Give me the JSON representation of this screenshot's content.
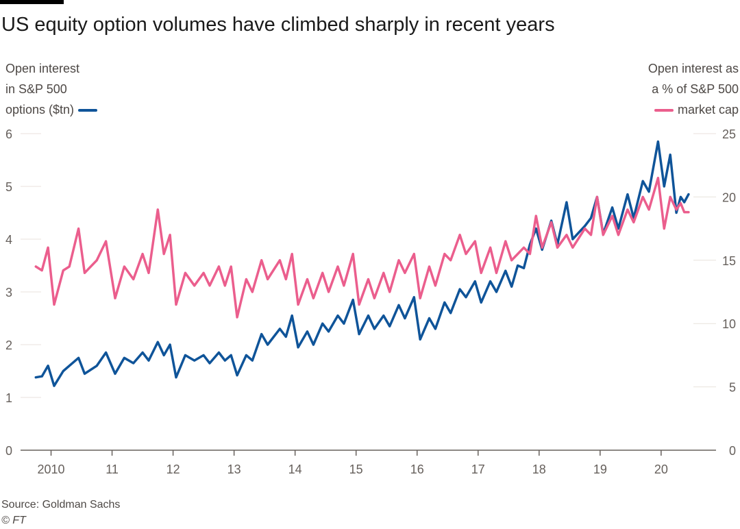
{
  "title": "US equity option volumes have climbed sharply in recent years",
  "left_axis_label": [
    "Open interest",
    "in S&P 500",
    "options ($tn)"
  ],
  "right_axis_label": [
    "Open interest as",
    "a % of S&P 500",
    "market cap"
  ],
  "source": "Source: Goldman Sachs",
  "credit": "© FT",
  "colors": {
    "open_interest": "#0f5499",
    "pct_market_cap": "#eb5e8d",
    "grid": "#e8e2dc",
    "axis": "#66605c"
  },
  "chart_data": {
    "type": "line",
    "title": "US equity option volumes have climbed sharply in recent years",
    "x_ticks": [
      2010,
      2011,
      2012,
      2013,
      2014,
      2015,
      2016,
      2017,
      2018,
      2019,
      2020
    ],
    "x_tick_labels": [
      "2010",
      "11",
      "12",
      "13",
      "14",
      "15",
      "16",
      "17",
      "18",
      "19",
      "20"
    ],
    "xlim": [
      2009.5,
      2020.9
    ],
    "y_left": {
      "label": "Open interest in S&P 500 options ($tn)",
      "ylim": [
        0,
        6
      ],
      "ticks": [
        0,
        1,
        2,
        3,
        4,
        5,
        6
      ]
    },
    "y_right": {
      "label": "Open interest as a % of S&P 500 market cap",
      "ylim": [
        0,
        25
      ],
      "ticks": [
        0,
        5,
        10,
        15,
        20,
        25
      ]
    },
    "grid": "horizontal",
    "series": [
      {
        "name": "Open interest in S&P 500 options ($tn)",
        "axis": "left",
        "color": "#0f5499",
        "points": [
          [
            2009.75,
            1.38
          ],
          [
            2009.85,
            1.4
          ],
          [
            2009.95,
            1.6
          ],
          [
            2010.05,
            1.22
          ],
          [
            2010.2,
            1.5
          ],
          [
            2010.3,
            1.6
          ],
          [
            2010.45,
            1.75
          ],
          [
            2010.55,
            1.45
          ],
          [
            2010.75,
            1.6
          ],
          [
            2010.9,
            1.85
          ],
          [
            2011.05,
            1.45
          ],
          [
            2011.2,
            1.75
          ],
          [
            2011.35,
            1.65
          ],
          [
            2011.5,
            1.85
          ],
          [
            2011.6,
            1.7
          ],
          [
            2011.75,
            2.05
          ],
          [
            2011.85,
            1.8
          ],
          [
            2011.95,
            2.0
          ],
          [
            2012.05,
            1.38
          ],
          [
            2012.2,
            1.8
          ],
          [
            2012.35,
            1.7
          ],
          [
            2012.5,
            1.8
          ],
          [
            2012.6,
            1.65
          ],
          [
            2012.75,
            1.85
          ],
          [
            2012.85,
            1.7
          ],
          [
            2012.95,
            1.8
          ],
          [
            2013.05,
            1.42
          ],
          [
            2013.2,
            1.8
          ],
          [
            2013.3,
            1.7
          ],
          [
            2013.45,
            2.2
          ],
          [
            2013.55,
            2.0
          ],
          [
            2013.75,
            2.3
          ],
          [
            2013.85,
            2.15
          ],
          [
            2013.95,
            2.55
          ],
          [
            2014.05,
            1.95
          ],
          [
            2014.2,
            2.25
          ],
          [
            2014.3,
            2.0
          ],
          [
            2014.45,
            2.4
          ],
          [
            2014.55,
            2.25
          ],
          [
            2014.7,
            2.55
          ],
          [
            2014.8,
            2.4
          ],
          [
            2014.95,
            2.85
          ],
          [
            2015.05,
            2.2
          ],
          [
            2015.2,
            2.55
          ],
          [
            2015.3,
            2.3
          ],
          [
            2015.45,
            2.55
          ],
          [
            2015.55,
            2.35
          ],
          [
            2015.7,
            2.75
          ],
          [
            2015.8,
            2.5
          ],
          [
            2015.95,
            2.9
          ],
          [
            2016.05,
            2.1
          ],
          [
            2016.2,
            2.5
          ],
          [
            2016.3,
            2.3
          ],
          [
            2016.45,
            2.8
          ],
          [
            2016.55,
            2.6
          ],
          [
            2016.7,
            3.05
          ],
          [
            2016.8,
            2.9
          ],
          [
            2016.95,
            3.2
          ],
          [
            2017.05,
            2.8
          ],
          [
            2017.2,
            3.2
          ],
          [
            2017.3,
            3.0
          ],
          [
            2017.45,
            3.4
          ],
          [
            2017.55,
            3.1
          ],
          [
            2017.65,
            3.5
          ],
          [
            2017.75,
            3.45
          ],
          [
            2017.85,
            3.9
          ],
          [
            2017.95,
            4.2
          ],
          [
            2018.05,
            3.8
          ],
          [
            2018.2,
            4.35
          ],
          [
            2018.3,
            3.9
          ],
          [
            2018.45,
            4.7
          ],
          [
            2018.55,
            4.0
          ],
          [
            2018.75,
            4.25
          ],
          [
            2018.85,
            4.4
          ],
          [
            2018.95,
            4.8
          ],
          [
            2019.05,
            4.1
          ],
          [
            2019.2,
            4.6
          ],
          [
            2019.3,
            4.2
          ],
          [
            2019.45,
            4.85
          ],
          [
            2019.55,
            4.4
          ],
          [
            2019.7,
            5.1
          ],
          [
            2019.8,
            4.9
          ],
          [
            2019.95,
            5.85
          ],
          [
            2020.05,
            5.0
          ],
          [
            2020.15,
            5.6
          ],
          [
            2020.25,
            4.5
          ],
          [
            2020.32,
            4.8
          ],
          [
            2020.38,
            4.7
          ],
          [
            2020.45,
            4.85
          ]
        ]
      },
      {
        "name": "Open interest as a % of S&P 500 market cap",
        "axis": "right",
        "color": "#eb5e8d",
        "points": [
          [
            2009.75,
            14.5
          ],
          [
            2009.85,
            14.2
          ],
          [
            2009.95,
            16.0
          ],
          [
            2010.05,
            11.5
          ],
          [
            2010.2,
            14.2
          ],
          [
            2010.3,
            14.5
          ],
          [
            2010.45,
            17.5
          ],
          [
            2010.55,
            14.0
          ],
          [
            2010.75,
            15.0
          ],
          [
            2010.9,
            16.5
          ],
          [
            2011.05,
            12.0
          ],
          [
            2011.2,
            14.5
          ],
          [
            2011.35,
            13.5
          ],
          [
            2011.5,
            15.5
          ],
          [
            2011.6,
            14.0
          ],
          [
            2011.75,
            19.0
          ],
          [
            2011.85,
            15.5
          ],
          [
            2011.95,
            17.0
          ],
          [
            2012.05,
            11.5
          ],
          [
            2012.2,
            14.0
          ],
          [
            2012.35,
            13.0
          ],
          [
            2012.5,
            14.0
          ],
          [
            2012.6,
            13.0
          ],
          [
            2012.75,
            14.5
          ],
          [
            2012.85,
            13.0
          ],
          [
            2012.95,
            14.5
          ],
          [
            2013.05,
            10.5
          ],
          [
            2013.2,
            13.5
          ],
          [
            2013.3,
            12.5
          ],
          [
            2013.45,
            15.0
          ],
          [
            2013.55,
            13.5
          ],
          [
            2013.75,
            15.0
          ],
          [
            2013.85,
            13.5
          ],
          [
            2013.95,
            15.5
          ],
          [
            2014.05,
            11.5
          ],
          [
            2014.2,
            13.5
          ],
          [
            2014.3,
            12.0
          ],
          [
            2014.45,
            14.0
          ],
          [
            2014.55,
            12.5
          ],
          [
            2014.7,
            14.5
          ],
          [
            2014.8,
            13.0
          ],
          [
            2014.95,
            15.5
          ],
          [
            2015.05,
            11.5
          ],
          [
            2015.2,
            13.5
          ],
          [
            2015.3,
            12.0
          ],
          [
            2015.45,
            14.0
          ],
          [
            2015.55,
            12.5
          ],
          [
            2015.7,
            15.0
          ],
          [
            2015.8,
            14.0
          ],
          [
            2015.95,
            15.5
          ],
          [
            2016.05,
            12.0
          ],
          [
            2016.2,
            14.5
          ],
          [
            2016.3,
            13.0
          ],
          [
            2016.45,
            15.5
          ],
          [
            2016.55,
            15.0
          ],
          [
            2016.7,
            17.0
          ],
          [
            2016.8,
            15.5
          ],
          [
            2016.95,
            16.5
          ],
          [
            2017.05,
            14.0
          ],
          [
            2017.2,
            16.0
          ],
          [
            2017.3,
            14.0
          ],
          [
            2017.45,
            16.5
          ],
          [
            2017.55,
            15.0
          ],
          [
            2017.65,
            15.5
          ],
          [
            2017.75,
            16.0
          ],
          [
            2017.85,
            15.5
          ],
          [
            2017.95,
            18.5
          ],
          [
            2018.05,
            16.0
          ],
          [
            2018.2,
            18.0
          ],
          [
            2018.3,
            16.0
          ],
          [
            2018.45,
            17.0
          ],
          [
            2018.55,
            16.0
          ],
          [
            2018.75,
            17.5
          ],
          [
            2018.85,
            17.0
          ],
          [
            2018.95,
            20.0
          ],
          [
            2019.05,
            17.0
          ],
          [
            2019.2,
            18.5
          ],
          [
            2019.3,
            17.0
          ],
          [
            2019.45,
            19.0
          ],
          [
            2019.55,
            18.0
          ],
          [
            2019.7,
            20.0
          ],
          [
            2019.8,
            19.0
          ],
          [
            2019.95,
            21.5
          ],
          [
            2020.05,
            17.5
          ],
          [
            2020.15,
            20.0
          ],
          [
            2020.25,
            19.0
          ],
          [
            2020.32,
            19.5
          ],
          [
            2020.38,
            18.8
          ],
          [
            2020.45,
            18.8
          ]
        ]
      }
    ]
  }
}
